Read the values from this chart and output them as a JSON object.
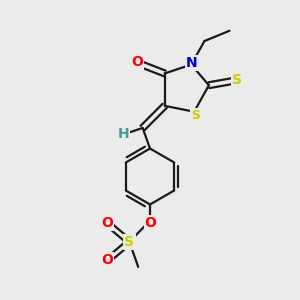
{
  "bg_color": "#ebebeb",
  "bond_color": "#1a1a1a",
  "atom_colors": {
    "O": "#ff0000",
    "N": "#0000cc",
    "S": "#cccc00",
    "H": "#4a9a9a",
    "C": "#1a1a1a"
  },
  "font_size": 10,
  "lw": 1.6
}
